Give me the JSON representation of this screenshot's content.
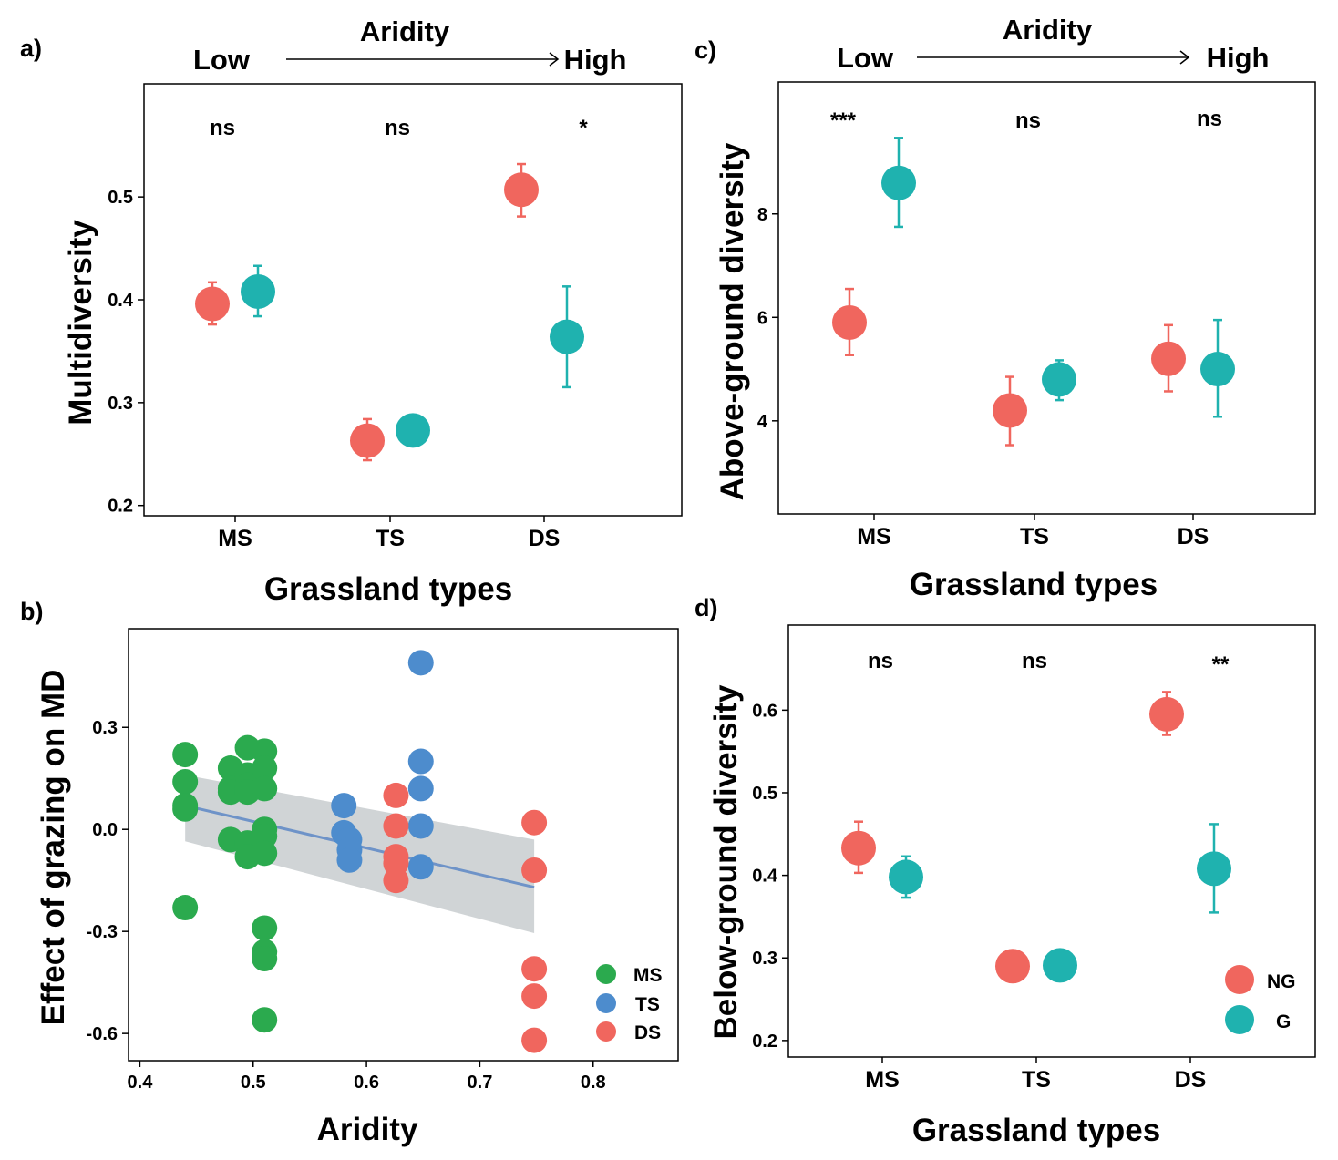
{
  "colors": {
    "NG": "#F0665E",
    "G": "#1FB2AF",
    "MS": "#2BAA4E",
    "TS": "#4D8CCD",
    "DS": "#F0665E",
    "fit_line": "#6E93C8",
    "ci_band": "#C8CCCF"
  },
  "panel_a": {
    "label": "a)",
    "aridity_title": "Aridity",
    "aridity_low": "Low",
    "aridity_high": "High",
    "xlabel": "Grassland types",
    "ylabel": "Multidiversity",
    "sig": [
      "ns",
      "ns",
      "*"
    ]
  },
  "panel_b": {
    "label": "b)",
    "xlabel": "Aridity",
    "ylabel": "Effect of grazing on MD",
    "legend": [
      "MS",
      "TS",
      "DS"
    ]
  },
  "panel_c": {
    "label": "c)",
    "aridity_title": "Aridity",
    "aridity_low": "Low",
    "aridity_high": "High",
    "xlabel": "Grassland types",
    "ylabel": "Above-ground diversity",
    "sig": [
      "***",
      "ns",
      "ns"
    ]
  },
  "panel_d": {
    "label": "d)",
    "xlabel": "Grassland types",
    "ylabel": "Below-ground diversity",
    "sig": [
      "ns",
      "ns",
      "**"
    ],
    "legend": [
      "NG",
      "G"
    ]
  },
  "chart_data": [
    {
      "panel": "a",
      "type": "scatter",
      "categories": [
        "MS",
        "TS",
        "DS"
      ],
      "series": [
        {
          "name": "NG",
          "values": [
            0.396,
            0.263,
            0.507
          ],
          "lower": [
            0.376,
            0.244,
            0.481
          ],
          "upper": [
            0.417,
            0.284,
            0.532
          ]
        },
        {
          "name": "G",
          "values": [
            0.408,
            0.273,
            0.364
          ],
          "lower": [
            0.384,
            0.273,
            0.315
          ],
          "upper": [
            0.433,
            0.273,
            0.413
          ]
        }
      ],
      "yticks": [
        0.2,
        0.3,
        0.4,
        0.5
      ],
      "ylim": [
        0.19,
        0.61
      ],
      "xlabel": "Grassland types",
      "ylabel": "Multidiversity"
    },
    {
      "panel": "b",
      "type": "scatter",
      "series": [
        {
          "name": "MS",
          "points": [
            [
              0.44,
              0.22
            ],
            [
              0.44,
              0.14
            ],
            [
              0.44,
              0.07
            ],
            [
              0.44,
              0.06
            ],
            [
              0.44,
              -0.23
            ],
            [
              0.48,
              0.18
            ],
            [
              0.48,
              0.12
            ],
            [
              0.48,
              0.11
            ],
            [
              0.48,
              -0.03
            ],
            [
              0.495,
              0.24
            ],
            [
              0.495,
              0.16
            ],
            [
              0.495,
              0.13
            ],
            [
              0.495,
              0.11
            ],
            [
              0.495,
              -0.04
            ],
            [
              0.495,
              -0.08
            ],
            [
              0.51,
              0.23
            ],
            [
              0.51,
              0.18
            ],
            [
              0.51,
              0.12
            ],
            [
              0.51,
              0.0
            ],
            [
              0.51,
              -0.02
            ],
            [
              0.51,
              -0.07
            ],
            [
              0.51,
              -0.29
            ],
            [
              0.51,
              -0.36
            ],
            [
              0.51,
              -0.38
            ],
            [
              0.51,
              -0.56
            ]
          ]
        },
        {
          "name": "TS",
          "points": [
            [
              0.58,
              0.07
            ],
            [
              0.58,
              -0.01
            ],
            [
              0.585,
              -0.03
            ],
            [
              0.585,
              -0.06
            ],
            [
              0.585,
              -0.09
            ],
            [
              0.648,
              0.49
            ],
            [
              0.648,
              0.2
            ],
            [
              0.648,
              0.12
            ],
            [
              0.648,
              0.01
            ],
            [
              0.648,
              -0.11
            ]
          ]
        },
        {
          "name": "DS",
          "points": [
            [
              0.626,
              0.1
            ],
            [
              0.626,
              0.01
            ],
            [
              0.626,
              -0.08
            ],
            [
              0.626,
              -0.1
            ],
            [
              0.626,
              -0.15
            ],
            [
              0.748,
              0.02
            ],
            [
              0.748,
              -0.12
            ],
            [
              0.748,
              -0.41
            ],
            [
              0.748,
              -0.49
            ],
            [
              0.748,
              -0.62
            ]
          ]
        }
      ],
      "fit": {
        "x": [
          0.44,
          0.748
        ],
        "y": [
          0.07,
          -0.17
        ],
        "ci_lower": [
          -0.035,
          -0.305
        ],
        "ci_upper": [
          0.16,
          -0.03
        ]
      },
      "xticks": [
        0.4,
        0.5,
        0.6,
        0.7,
        0.8
      ],
      "yticks": [
        -0.6,
        -0.3,
        0.0,
        0.3
      ],
      "xlim": [
        0.39,
        0.875
      ],
      "ylim": [
        -0.68,
        0.59
      ],
      "xlabel": "Aridity",
      "ylabel": "Effect of grazing on MD"
    },
    {
      "panel": "c",
      "type": "scatter",
      "categories": [
        "MS",
        "TS",
        "DS"
      ],
      "series": [
        {
          "name": "NG",
          "values": [
            5.9,
            4.2,
            5.2
          ],
          "lower": [
            5.27,
            3.53,
            4.57
          ],
          "upper": [
            6.55,
            4.85,
            5.85
          ]
        },
        {
          "name": "G",
          "values": [
            8.6,
            4.8,
            5.0
          ],
          "lower": [
            7.75,
            4.4,
            4.08
          ],
          "upper": [
            9.47,
            5.17,
            5.95
          ]
        }
      ],
      "yticks": [
        4,
        6,
        8
      ],
      "ylim": [
        2.2,
        10.55
      ],
      "xlabel": "Grassland types",
      "ylabel": "Above-ground diversity"
    },
    {
      "panel": "d",
      "type": "scatter",
      "categories": [
        "MS",
        "TS",
        "DS"
      ],
      "series": [
        {
          "name": "NG",
          "values": [
            0.433,
            0.29,
            0.595
          ],
          "lower": [
            0.403,
            0.29,
            0.57
          ],
          "upper": [
            0.465,
            0.29,
            0.622
          ]
        },
        {
          "name": "G",
          "values": [
            0.398,
            0.291,
            0.408
          ],
          "lower": [
            0.373,
            0.291,
            0.355
          ],
          "upper": [
            0.423,
            0.291,
            0.462
          ]
        }
      ],
      "yticks": [
        0.2,
        0.3,
        0.4,
        0.5,
        0.6
      ],
      "ylim": [
        0.18,
        0.703
      ],
      "xlabel": "Grassland types",
      "ylabel": "Below-ground diversity"
    }
  ]
}
